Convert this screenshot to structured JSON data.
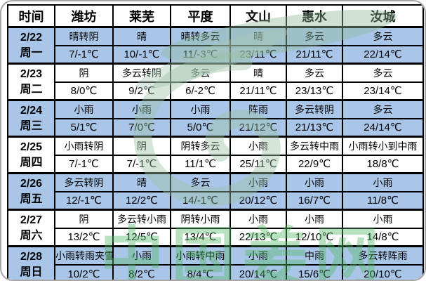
{
  "table": {
    "columns": [
      "时间",
      "潍坊",
      "莱芜",
      "平度",
      "文山",
      "惠水",
      "汝城"
    ],
    "rows": [
      {
        "date": "2/22",
        "weekday": "周一",
        "shaded": true,
        "weather": [
          "晴转阴",
          "晴",
          "晴转多云",
          "晴",
          "多云",
          "多云"
        ],
        "temps": [
          "7/-1℃",
          "10/-1℃",
          "11/-3℃",
          "23/11℃",
          "21/11℃",
          "22/14℃"
        ]
      },
      {
        "date": "2/23",
        "weekday": "周二",
        "shaded": false,
        "weather": [
          "阴",
          "多云转阴",
          "多云",
          "晴",
          "多云",
          "多云"
        ],
        "temps": [
          "8/0℃",
          "9/2℃",
          "6/-2℃",
          "21/11℃",
          "23/13℃",
          "23/14℃"
        ]
      },
      {
        "date": "2/24",
        "weekday": "周三",
        "shaded": true,
        "weather": [
          "小雨",
          "小雨",
          "小雨",
          "阵雨",
          "多云转阴",
          "多云"
        ],
        "temps": [
          "5/1℃",
          "7/0℃",
          "5/0℃",
          "21/12℃",
          "21/13℃",
          "24/14℃"
        ]
      },
      {
        "date": "2/25",
        "weekday": "周四",
        "shaded": false,
        "weather": [
          "小雨转阴",
          "阴",
          "阴转多云",
          "小雨",
          "多云转中雨",
          "小雨转小到中雨"
        ],
        "temps": [
          "7/-1℃",
          "7/-1℃",
          "11/1℃",
          "25/11℃",
          "22/9℃",
          "18/8℃"
        ]
      },
      {
        "date": "2/26",
        "weekday": "周五",
        "shaded": true,
        "weather": [
          "多云转阴",
          "晴",
          "多云",
          "小雨",
          "小雨",
          "小雨"
        ],
        "temps": [
          "12/-1℃",
          "12/2℃",
          "14/-1℃",
          "20/12℃",
          "16/7℃",
          "11/8℃"
        ]
      },
      {
        "date": "2/27",
        "weekday": "周六",
        "shaded": false,
        "weather": [
          "阴",
          "多云转小雨",
          "阴转小雨",
          "小雨",
          "小雨",
          "小雨"
        ],
        "temps": [
          "13/2℃",
          "12/5℃",
          "13/4℃",
          "22/13℃",
          "12/10℃",
          "14/8℃"
        ]
      },
      {
        "date": "2/28",
        "weekday": "周日",
        "shaded": true,
        "weather": [
          "小雨转雨夹雪",
          "小雨",
          "小雨转中雨",
          "小雨",
          "中雨",
          "多云转阵雨"
        ],
        "temps": [
          "10/2℃",
          "8/2℃",
          "8/4℃",
          "20/14℃",
          "15/6℃",
          "20/10℃"
        ]
      }
    ]
  },
  "watermark": {
    "text": "中国姜网",
    "text_color": "#55b868",
    "leaf_color": "#93b89f",
    "swirl_color": "#9bc0a6"
  },
  "colors": {
    "row_blue": "#a9c6e8",
    "row_white": "#ffffff",
    "grid_border": "#000000",
    "frame_border": "#a6a6a6"
  }
}
